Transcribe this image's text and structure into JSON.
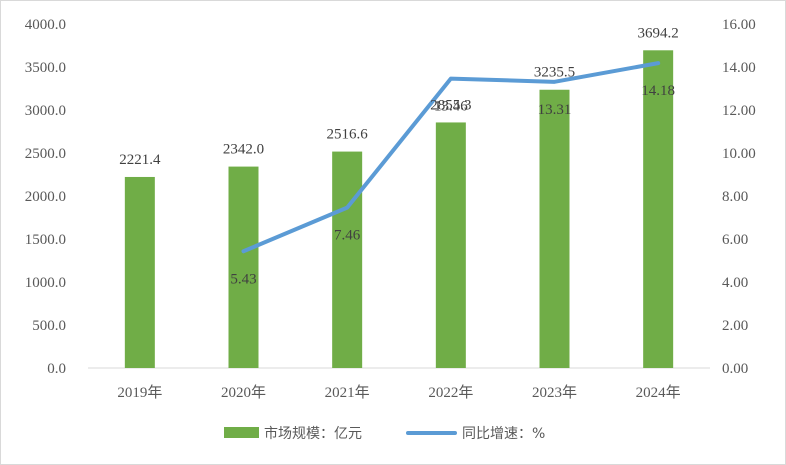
{
  "chart_data": {
    "type": "bar",
    "categories": [
      "2019年",
      "2020年",
      "2021年",
      "2022年",
      "2023年",
      "2024年"
    ],
    "series": [
      {
        "name": "市场规模：亿元",
        "type": "bar",
        "axis": "left",
        "color": "#70ad47",
        "values": [
          2221.4,
          2342.0,
          2516.6,
          2855.3,
          3235.5,
          3694.2
        ],
        "labels": [
          "2221.4",
          "2342.0",
          "2516.6",
          "2855.3",
          "3235.5",
          "3694.2"
        ]
      },
      {
        "name": "同比增速：%",
        "type": "line",
        "axis": "right",
        "color": "#5b9bd5",
        "values": [
          null,
          5.43,
          7.46,
          13.46,
          13.31,
          14.18
        ],
        "labels": [
          "",
          "5.43",
          "7.46",
          "13.46",
          "13.31",
          "14.18"
        ]
      }
    ],
    "y_left": {
      "min": 0,
      "max": 4000,
      "step": 500,
      "tick_labels": [
        "0.0",
        "500.0",
        "1000.0",
        "1500.0",
        "2000.0",
        "2500.0",
        "3000.0",
        "3500.0",
        "4000.0"
      ]
    },
    "y_right": {
      "min": 0,
      "max": 16,
      "step": 2,
      "tick_labels": [
        "0.00",
        "2.00",
        "4.00",
        "6.00",
        "8.00",
        "10.00",
        "12.00",
        "14.00",
        "16.00"
      ]
    },
    "title": "",
    "grid": false,
    "legend_position": "bottom"
  }
}
